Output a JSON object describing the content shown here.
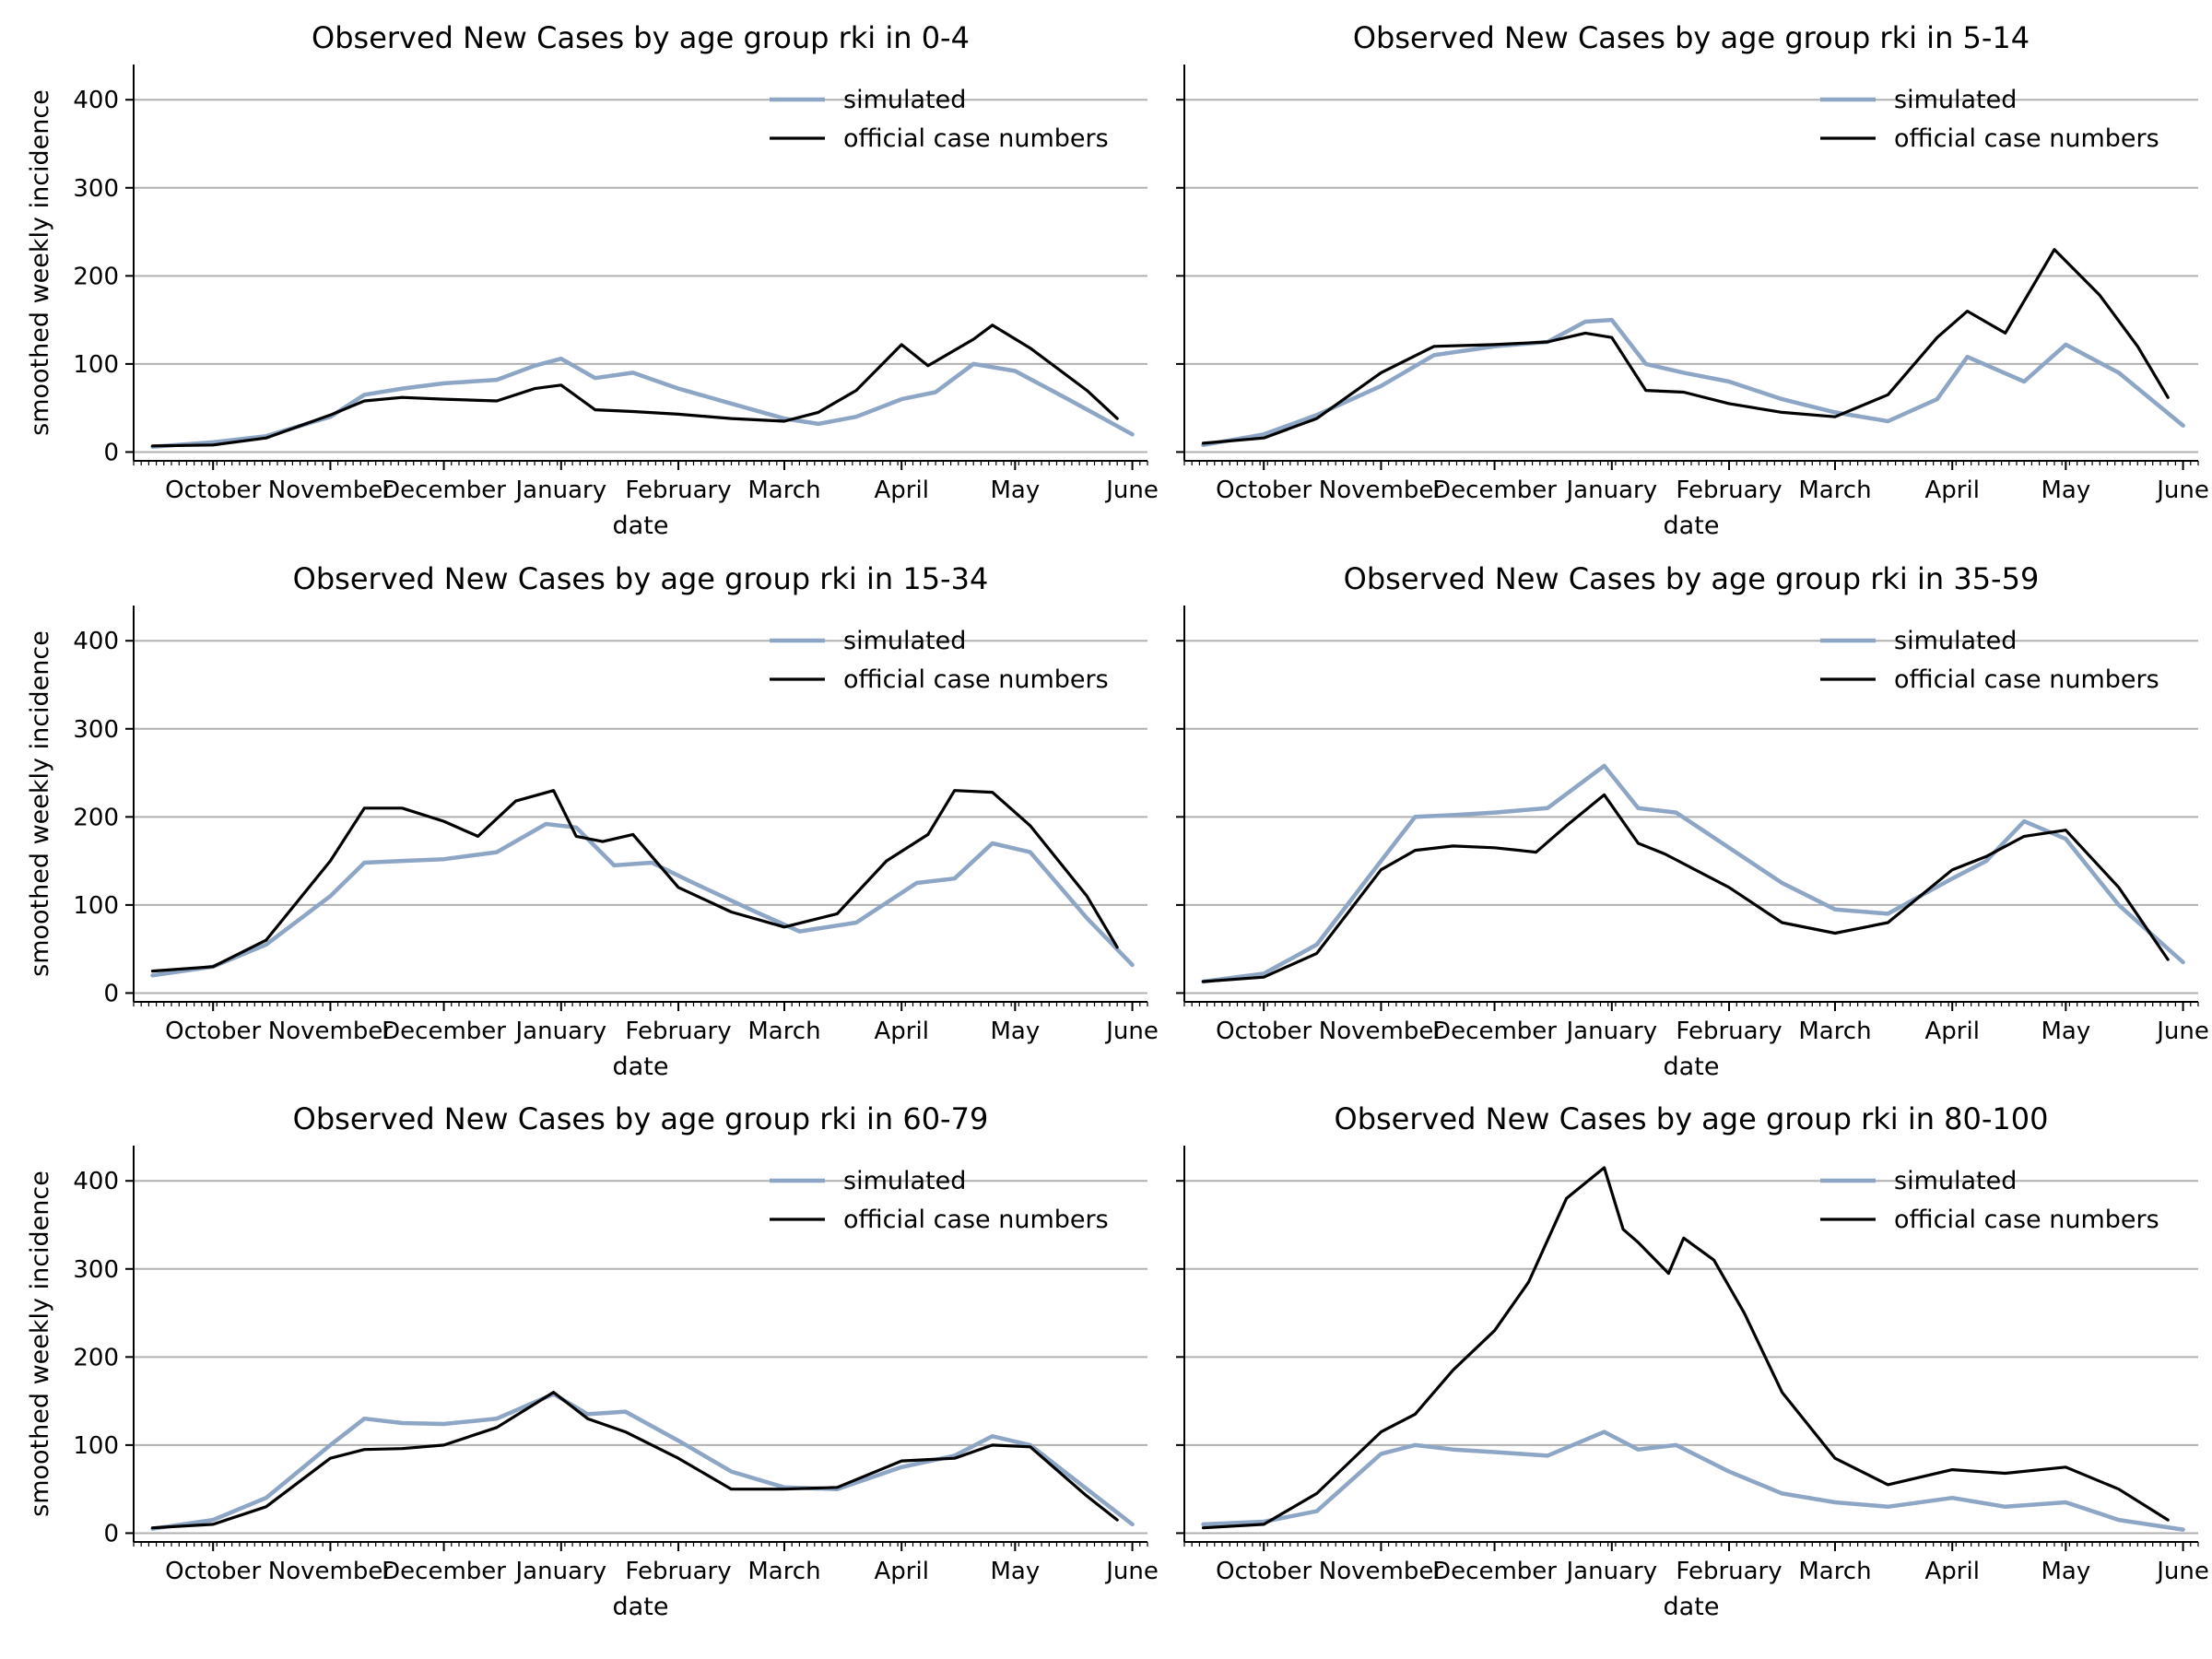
{
  "figure": {
    "background": "#ffffff"
  },
  "style": {
    "simulated_color": "#8ea6c6",
    "official_color": "#000000",
    "grid_color": "#b0b0b0"
  },
  "chart_data": [
    {
      "type": "line",
      "title": "Observed New Cases by age group rki in 0-4",
      "xlabel": "date",
      "ylabel": "smoothed weekly incidence",
      "ylim": [
        -10,
        440
      ],
      "yticks": [
        0,
        100,
        200,
        300,
        400
      ],
      "xticks": [
        "October",
        "November",
        "December",
        "January",
        "February",
        "March",
        "April",
        "May",
        "June"
      ],
      "grid": "horizontal",
      "legend": "upper right",
      "series": [
        {
          "name": "simulated",
          "x": [
            "2020-09-15",
            "2020-10-01",
            "2020-10-15",
            "2020-11-01",
            "2020-11-10",
            "2020-11-20",
            "2020-12-01",
            "2020-12-15",
            "2020-12-25",
            "2021-01-01",
            "2021-01-10",
            "2021-01-20",
            "2021-02-01",
            "2021-02-15",
            "2021-03-01",
            "2021-03-10",
            "2021-03-20",
            "2021-04-01",
            "2021-04-10",
            "2021-04-20",
            "2021-05-01",
            "2021-05-15",
            "2021-06-01"
          ],
          "y": [
            6,
            11,
            18,
            40,
            65,
            72,
            78,
            82,
            98,
            106,
            84,
            90,
            72,
            55,
            38,
            32,
            40,
            60,
            68,
            100,
            92,
            60,
            20
          ]
        },
        {
          "name": "official case numbers",
          "x": [
            "2020-09-15",
            "2020-10-01",
            "2020-10-15",
            "2020-11-01",
            "2020-11-10",
            "2020-11-20",
            "2020-12-01",
            "2020-12-15",
            "2020-12-25",
            "2021-01-01",
            "2021-01-10",
            "2021-01-20",
            "2021-02-01",
            "2021-02-15",
            "2021-03-01",
            "2021-03-10",
            "2021-03-20",
            "2021-04-01",
            "2021-04-08",
            "2021-04-20",
            "2021-04-25",
            "2021-05-05",
            "2021-05-20",
            "2021-05-28"
          ],
          "y": [
            7,
            8,
            16,
            42,
            58,
            62,
            60,
            58,
            72,
            76,
            48,
            46,
            43,
            38,
            35,
            45,
            70,
            122,
            98,
            128,
            144,
            118,
            70,
            38
          ]
        }
      ]
    },
    {
      "type": "line",
      "title": "Observed New Cases by age group rki in 5-14",
      "xlabel": "date",
      "ylabel": "",
      "ylim": [
        -10,
        440
      ],
      "yticks": [
        0,
        100,
        200,
        300,
        400
      ],
      "xticks": [
        "October",
        "November",
        "December",
        "January",
        "February",
        "March",
        "April",
        "May",
        "June"
      ],
      "grid": "horizontal",
      "legend": "upper right",
      "series": [
        {
          "name": "simulated",
          "x": [
            "2020-09-15",
            "2020-10-01",
            "2020-10-15",
            "2020-11-01",
            "2020-11-15",
            "2020-12-01",
            "2020-12-15",
            "2020-12-25",
            "2021-01-01",
            "2021-01-10",
            "2021-01-20",
            "2021-02-01",
            "2021-02-15",
            "2021-03-01",
            "2021-03-15",
            "2021-03-28",
            "2021-04-05",
            "2021-04-20",
            "2021-05-01",
            "2021-05-15",
            "2021-06-01"
          ],
          "y": [
            8,
            20,
            42,
            75,
            110,
            120,
            125,
            148,
            150,
            100,
            90,
            80,
            60,
            45,
            35,
            60,
            108,
            80,
            122,
            90,
            30
          ]
        },
        {
          "name": "official case numbers",
          "x": [
            "2020-09-15",
            "2020-10-01",
            "2020-10-15",
            "2020-11-01",
            "2020-11-15",
            "2020-12-01",
            "2020-12-15",
            "2020-12-25",
            "2021-01-01",
            "2021-01-10",
            "2021-01-20",
            "2021-02-01",
            "2021-02-15",
            "2021-03-01",
            "2021-03-15",
            "2021-03-28",
            "2021-04-05",
            "2021-04-15",
            "2021-04-28",
            "2021-05-10",
            "2021-05-20",
            "2021-05-28"
          ],
          "y": [
            10,
            16,
            38,
            90,
            120,
            122,
            125,
            135,
            130,
            70,
            68,
            55,
            45,
            40,
            65,
            130,
            160,
            135,
            230,
            178,
            120,
            62
          ]
        }
      ]
    },
    {
      "type": "line",
      "title": "Observed New Cases by age group rki in 15-34",
      "xlabel": "date",
      "ylabel": "smoothed weekly incidence",
      "ylim": [
        -10,
        440
      ],
      "yticks": [
        0,
        100,
        200,
        300,
        400
      ],
      "xticks": [
        "October",
        "November",
        "December",
        "January",
        "February",
        "March",
        "April",
        "May",
        "June"
      ],
      "grid": "horizontal",
      "legend": "upper right",
      "series": [
        {
          "name": "simulated",
          "x": [
            "2020-09-15",
            "2020-10-01",
            "2020-10-15",
            "2020-11-01",
            "2020-11-10",
            "2020-11-20",
            "2020-12-01",
            "2020-12-15",
            "2020-12-28",
            "2021-01-05",
            "2021-01-15",
            "2021-01-25",
            "2021-02-05",
            "2021-02-20",
            "2021-03-05",
            "2021-03-20",
            "2021-04-05",
            "2021-04-15",
            "2021-04-25",
            "2021-05-05",
            "2021-05-20",
            "2021-06-01"
          ],
          "y": [
            20,
            30,
            55,
            110,
            148,
            150,
            152,
            160,
            192,
            188,
            145,
            148,
            125,
            95,
            70,
            80,
            125,
            130,
            170,
            160,
            85,
            32
          ]
        },
        {
          "name": "official case numbers",
          "x": [
            "2020-09-15",
            "2020-10-01",
            "2020-10-15",
            "2020-11-01",
            "2020-11-10",
            "2020-11-20",
            "2020-12-01",
            "2020-12-10",
            "2020-12-20",
            "2020-12-30",
            "2021-01-05",
            "2021-01-12",
            "2021-01-20",
            "2021-02-01",
            "2021-02-15",
            "2021-03-01",
            "2021-03-15",
            "2021-03-28",
            "2021-04-08",
            "2021-04-15",
            "2021-04-25",
            "2021-05-05",
            "2021-05-20",
            "2021-05-28"
          ],
          "y": [
            25,
            30,
            60,
            150,
            210,
            210,
            195,
            178,
            218,
            230,
            178,
            172,
            180,
            120,
            92,
            75,
            90,
            150,
            180,
            230,
            228,
            190,
            110,
            52
          ]
        }
      ]
    },
    {
      "type": "line",
      "title": "Observed New Cases by age group rki in 35-59",
      "xlabel": "date",
      "ylabel": "",
      "ylim": [
        -10,
        440
      ],
      "yticks": [
        0,
        100,
        200,
        300,
        400
      ],
      "xticks": [
        "October",
        "November",
        "December",
        "January",
        "February",
        "March",
        "April",
        "May",
        "June"
      ],
      "grid": "horizontal",
      "legend": "upper right",
      "series": [
        {
          "name": "simulated",
          "x": [
            "2020-09-15",
            "2020-10-01",
            "2020-10-15",
            "2020-11-01",
            "2020-11-10",
            "2020-11-20",
            "2020-12-01",
            "2020-12-15",
            "2020-12-30",
            "2021-01-08",
            "2021-01-18",
            "2021-02-01",
            "2021-02-15",
            "2021-03-01",
            "2021-03-15",
            "2021-04-01",
            "2021-04-10",
            "2021-04-20",
            "2021-05-01",
            "2021-05-15",
            "2021-06-01"
          ],
          "y": [
            13,
            22,
            55,
            150,
            200,
            202,
            205,
            210,
            258,
            210,
            205,
            165,
            125,
            95,
            90,
            130,
            150,
            195,
            175,
            100,
            35
          ]
        },
        {
          "name": "official case numbers",
          "x": [
            "2020-09-15",
            "2020-10-01",
            "2020-10-15",
            "2020-11-01",
            "2020-11-10",
            "2020-11-20",
            "2020-12-01",
            "2020-12-12",
            "2020-12-20",
            "2020-12-30",
            "2021-01-08",
            "2021-01-15",
            "2021-02-01",
            "2021-02-15",
            "2021-03-01",
            "2021-03-15",
            "2021-04-01",
            "2021-04-10",
            "2021-04-20",
            "2021-05-01",
            "2021-05-15",
            "2021-05-28"
          ],
          "y": [
            13,
            18,
            45,
            140,
            162,
            167,
            165,
            160,
            190,
            225,
            170,
            158,
            120,
            80,
            68,
            80,
            140,
            155,
            178,
            185,
            120,
            38
          ]
        }
      ]
    },
    {
      "type": "line",
      "title": "Observed New Cases by age group rki in 60-79",
      "xlabel": "date",
      "ylabel": "smoothed weekly incidence",
      "ylim": [
        -10,
        440
      ],
      "yticks": [
        0,
        100,
        200,
        300,
        400
      ],
      "xticks": [
        "October",
        "November",
        "December",
        "January",
        "February",
        "March",
        "April",
        "May",
        "June"
      ],
      "grid": "horizontal",
      "legend": "upper right",
      "series": [
        {
          "name": "simulated",
          "x": [
            "2020-09-15",
            "2020-10-01",
            "2020-10-15",
            "2020-11-01",
            "2020-11-10",
            "2020-11-20",
            "2020-12-01",
            "2020-12-15",
            "2020-12-30",
            "2021-01-08",
            "2021-01-18",
            "2021-02-01",
            "2021-02-15",
            "2021-03-01",
            "2021-03-15",
            "2021-04-01",
            "2021-04-15",
            "2021-04-25",
            "2021-05-05",
            "2021-05-20",
            "2021-06-01"
          ],
          "y": [
            5,
            15,
            40,
            100,
            130,
            125,
            124,
            130,
            158,
            135,
            138,
            105,
            70,
            52,
            50,
            75,
            88,
            110,
            100,
            50,
            10
          ]
        },
        {
          "name": "official case numbers",
          "x": [
            "2020-09-15",
            "2020-10-01",
            "2020-10-15",
            "2020-11-01",
            "2020-11-10",
            "2020-11-20",
            "2020-12-01",
            "2020-12-15",
            "2020-12-30",
            "2021-01-08",
            "2021-01-18",
            "2021-02-01",
            "2021-02-15",
            "2021-03-01",
            "2021-03-15",
            "2021-04-01",
            "2021-04-15",
            "2021-04-25",
            "2021-05-05",
            "2021-05-20",
            "2021-05-28"
          ],
          "y": [
            6,
            10,
            30,
            85,
            95,
            96,
            100,
            120,
            160,
            130,
            115,
            85,
            50,
            50,
            52,
            82,
            85,
            100,
            98,
            42,
            15
          ]
        }
      ]
    },
    {
      "type": "line",
      "title": "Observed New Cases by age group rki in 80-100",
      "xlabel": "date",
      "ylabel": "",
      "ylim": [
        -10,
        440
      ],
      "yticks": [
        0,
        100,
        200,
        300,
        400
      ],
      "xticks": [
        "October",
        "November",
        "December",
        "January",
        "February",
        "March",
        "April",
        "May",
        "June"
      ],
      "grid": "horizontal",
      "legend": "upper right",
      "series": [
        {
          "name": "simulated",
          "x": [
            "2020-09-15",
            "2020-10-01",
            "2020-10-15",
            "2020-11-01",
            "2020-11-10",
            "2020-11-20",
            "2020-12-01",
            "2020-12-15",
            "2020-12-30",
            "2021-01-08",
            "2021-01-18",
            "2021-02-01",
            "2021-02-15",
            "2021-03-01",
            "2021-03-15",
            "2021-04-01",
            "2021-04-15",
            "2021-05-01",
            "2021-05-15",
            "2021-06-01"
          ],
          "y": [
            10,
            13,
            25,
            90,
            100,
            95,
            92,
            88,
            115,
            95,
            100,
            70,
            45,
            35,
            30,
            40,
            30,
            35,
            15,
            4
          ]
        },
        {
          "name": "official case numbers",
          "x": [
            "2020-09-15",
            "2020-10-01",
            "2020-10-15",
            "2020-11-01",
            "2020-11-10",
            "2020-11-20",
            "2020-12-01",
            "2020-12-10",
            "2020-12-20",
            "2020-12-30",
            "2021-01-04",
            "2021-01-08",
            "2021-01-16",
            "2021-01-20",
            "2021-01-28",
            "2021-02-05",
            "2021-02-15",
            "2021-03-01",
            "2021-03-15",
            "2021-04-01",
            "2021-04-15",
            "2021-05-01",
            "2021-05-15",
            "2021-05-28"
          ],
          "y": [
            6,
            10,
            45,
            115,
            135,
            185,
            230,
            285,
            380,
            415,
            345,
            330,
            295,
            335,
            310,
            250,
            160,
            85,
            55,
            72,
            68,
            75,
            50,
            15
          ]
        }
      ]
    }
  ]
}
